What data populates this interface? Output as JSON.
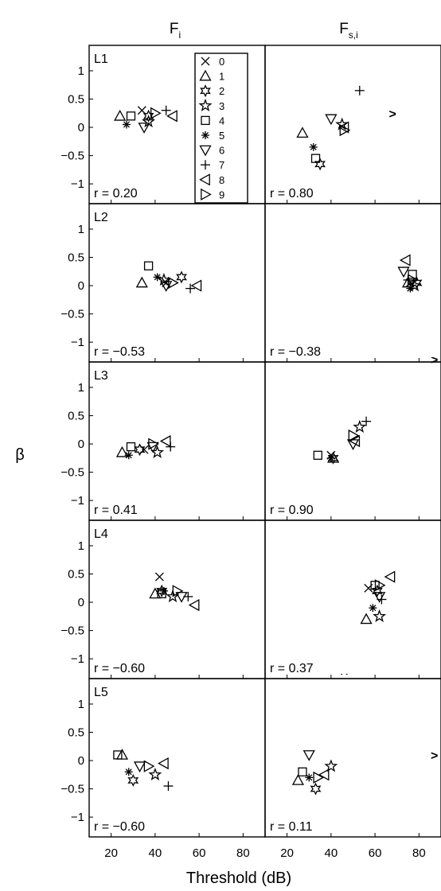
{
  "figure": {
    "column_titles": [
      {
        "main": "F",
        "sub": "i"
      },
      {
        "main": "F",
        "sub": "s,i"
      }
    ],
    "xlabel": "Threshold (dB)",
    "ylabel": "β"
  },
  "legend": {
    "entries": [
      {
        "label": "0",
        "marker": "x-mark"
      },
      {
        "label": "1",
        "marker": "triangle-up"
      },
      {
        "label": "2",
        "marker": "hexagram"
      },
      {
        "label": "3",
        "marker": "pentagram"
      },
      {
        "label": "4",
        "marker": "square"
      },
      {
        "label": "5",
        "marker": "asterisk"
      },
      {
        "label": "6",
        "marker": "triangle-down"
      },
      {
        "label": "7",
        "marker": "plus"
      },
      {
        "label": "8",
        "marker": "triangle-left"
      },
      {
        "label": "9",
        "marker": "triangle-right"
      }
    ]
  },
  "chart_data": [
    {
      "type": "scatter",
      "panel_label": "L1",
      "r_text": "r = 0.20",
      "xlim": [
        10,
        90
      ],
      "ylim": [
        -1.35,
        1.45
      ],
      "xticks": [
        "20",
        "40",
        "60",
        "80"
      ],
      "yticks": [
        "1",
        "0.5",
        "0",
        "−0.5",
        "−1"
      ],
      "ytick_values": [
        1,
        0.5,
        0,
        -0.5,
        -1
      ],
      "points": [
        {
          "label": "0",
          "x": 34,
          "y": 0.3
        },
        {
          "label": "1",
          "x": 24,
          "y": 0.2
        },
        {
          "label": "2",
          "x": 37,
          "y": 0.2
        },
        {
          "label": "3",
          "x": 37,
          "y": 0.1
        },
        {
          "label": "4",
          "x": 29,
          "y": 0.2
        },
        {
          "label": "5",
          "x": 27,
          "y": 0.05
        },
        {
          "label": "6",
          "x": 35,
          "y": 0.0
        },
        {
          "label": "7",
          "x": 45,
          "y": 0.3
        },
        {
          "label": "8",
          "x": 48,
          "y": 0.2
        },
        {
          "label": "9",
          "x": 40,
          "y": 0.25
        }
      ]
    },
    {
      "type": "scatter",
      "panel_label": "",
      "r_text": "r = 0.80",
      "xlim": [
        10,
        90
      ],
      "ylim": [
        -1.35,
        1.45
      ],
      "xticks": [
        "20",
        "40",
        "60",
        "80"
      ],
      "points": [
        {
          "label": "1",
          "x": 27,
          "y": -0.1
        },
        {
          "label": "2",
          "x": 35,
          "y": -0.65
        },
        {
          "label": "3",
          "x": 45,
          "y": 0.05
        },
        {
          "label": "4",
          "x": 33,
          "y": -0.55
        },
        {
          "label": "5",
          "x": 32,
          "y": -0.35
        },
        {
          "label": "6",
          "x": 40,
          "y": 0.15
        },
        {
          "label": "7",
          "x": 53,
          "y": 0.65
        },
        {
          "label": "8",
          "x": 46,
          "y": 0.0
        },
        {
          "label": "9",
          "x": 46,
          "y": -0.05
        }
      ],
      "annotations": [
        {
          "text": ">",
          "x": 68,
          "y": 0.25
        }
      ]
    },
    {
      "type": "scatter",
      "panel_label": "L2",
      "r_text": "r = −0.53",
      "xlim": [
        10,
        90
      ],
      "ylim": [
        -1.35,
        1.45
      ],
      "xticks": [
        "20",
        "40",
        "60",
        "80"
      ],
      "yticks": [
        "1",
        "0.5",
        "0",
        "−0.5",
        "−1"
      ],
      "ytick_values": [
        1,
        0.5,
        0,
        -0.5,
        -1
      ],
      "points": [
        {
          "label": "0",
          "x": 45,
          "y": 0.05
        },
        {
          "label": "1",
          "x": 34,
          "y": 0.05
        },
        {
          "label": "2",
          "x": 52,
          "y": 0.15
        },
        {
          "label": "3",
          "x": 44,
          "y": 0.1
        },
        {
          "label": "4",
          "x": 37,
          "y": 0.35
        },
        {
          "label": "5",
          "x": 41,
          "y": 0.15
        },
        {
          "label": "6",
          "x": 45,
          "y": 0.0
        },
        {
          "label": "7",
          "x": 56,
          "y": -0.05
        },
        {
          "label": "8",
          "x": 59,
          "y": 0.0
        },
        {
          "label": "9",
          "x": 48,
          "y": 0.05
        }
      ]
    },
    {
      "type": "scatter",
      "panel_label": "",
      "r_text": "r = −0.38",
      "xlim": [
        10,
        90
      ],
      "ylim": [
        -1.35,
        1.45
      ],
      "xticks": [
        "20",
        "40",
        "60",
        "80"
      ],
      "points": [
        {
          "label": "0",
          "x": 76,
          "y": 0.05
        },
        {
          "label": "1",
          "x": 75,
          "y": 0.05
        },
        {
          "label": "2",
          "x": 79,
          "y": 0.05
        },
        {
          "label": "3",
          "x": 78,
          "y": 0.0
        },
        {
          "label": "4",
          "x": 77,
          "y": 0.2
        },
        {
          "label": "5",
          "x": 76,
          "y": -0.05
        },
        {
          "label": "6",
          "x": 73,
          "y": 0.25
        },
        {
          "label": "7",
          "x": 75,
          "y": 0.1
        },
        {
          "label": "8",
          "x": 74,
          "y": 0.45
        },
        {
          "label": "9",
          "x": 77,
          "y": 0.1
        }
      ]
    },
    {
      "type": "scatter",
      "panel_label": "L3",
      "r_text": "r = 0.41",
      "xlim": [
        10,
        90
      ],
      "ylim": [
        -1.35,
        1.45
      ],
      "xticks": [
        "20",
        "40",
        "60",
        "80"
      ],
      "yticks": [
        "1",
        "0.5",
        "0",
        "−0.5",
        "−1"
      ],
      "ytick_values": [
        1,
        0.5,
        0,
        -0.5,
        -1
      ],
      "points": [
        {
          "label": "0",
          "x": 35,
          "y": -0.1
        },
        {
          "label": "1",
          "x": 25,
          "y": -0.15
        },
        {
          "label": "2",
          "x": 33,
          "y": -0.1
        },
        {
          "label": "3",
          "x": 41,
          "y": -0.15
        },
        {
          "label": "4",
          "x": 29,
          "y": -0.05
        },
        {
          "label": "5",
          "x": 28,
          "y": -0.2
        },
        {
          "label": "6",
          "x": 39,
          "y": -0.05
        },
        {
          "label": "7",
          "x": 47,
          "y": -0.05
        },
        {
          "label": "8",
          "x": 45,
          "y": 0.05
        },
        {
          "label": "9",
          "x": 39,
          "y": 0.0
        }
      ]
    },
    {
      "type": "scatter",
      "panel_label": "",
      "r_text": "r = 0.90",
      "xlim": [
        10,
        90
      ],
      "ylim": [
        -1.35,
        1.45
      ],
      "xticks": [
        "20",
        "40",
        "60",
        "80"
      ],
      "points": [
        {
          "label": "0",
          "x": 40,
          "y": -0.2
        },
        {
          "label": "1",
          "x": 41,
          "y": -0.25
        },
        {
          "label": "2",
          "x": 41,
          "y": -0.25
        },
        {
          "label": "3",
          "x": 53,
          "y": 0.3
        },
        {
          "label": "4",
          "x": 34,
          "y": -0.2
        },
        {
          "label": "5",
          "x": 40,
          "y": -0.25
        },
        {
          "label": "6",
          "x": 50,
          "y": 0.0
        },
        {
          "label": "7",
          "x": 56,
          "y": 0.4
        },
        {
          "label": "8",
          "x": 51,
          "y": 0.05
        },
        {
          "label": "9",
          "x": 50,
          "y": 0.15
        }
      ],
      "annotations": [
        {
          "text": ">",
          "x": 87,
          "y": 1.5
        }
      ]
    },
    {
      "type": "scatter",
      "panel_label": "L4",
      "r_text": "r = −0.60",
      "xlim": [
        10,
        90
      ],
      "ylim": [
        -1.35,
        1.45
      ],
      "xticks": [
        "20",
        "40",
        "60",
        "80"
      ],
      "yticks": [
        "1",
        "0.5",
        "0",
        "−0.5",
        "−1"
      ],
      "ytick_values": [
        1,
        0.5,
        0,
        -0.5,
        -1
      ],
      "points": [
        {
          "label": "0",
          "x": 42,
          "y": 0.45
        },
        {
          "label": "1",
          "x": 40,
          "y": 0.15
        },
        {
          "label": "2",
          "x": 43,
          "y": 0.2
        },
        {
          "label": "3",
          "x": 48,
          "y": 0.1
        },
        {
          "label": "4",
          "x": 43,
          "y": 0.15
        },
        {
          "label": "5",
          "x": 44,
          "y": 0.2
        },
        {
          "label": "6",
          "x": 52,
          "y": 0.1
        },
        {
          "label": "7",
          "x": 55,
          "y": 0.1
        },
        {
          "label": "8",
          "x": 58,
          "y": -0.05
        },
        {
          "label": "9",
          "x": 50,
          "y": 0.2
        }
      ]
    },
    {
      "type": "scatter",
      "panel_label": "",
      "r_text": "r = 0.37",
      "xlim": [
        10,
        90
      ],
      "ylim": [
        -1.35,
        1.45
      ],
      "xticks": [
        "20",
        "40",
        "60",
        "80"
      ],
      "points": [
        {
          "label": "0",
          "x": 57,
          "y": 0.25
        },
        {
          "label": "1",
          "x": 56,
          "y": -0.3
        },
        {
          "label": "2",
          "x": 61,
          "y": 0.2
        },
        {
          "label": "3",
          "x": 62,
          "y": -0.25
        },
        {
          "label": "4",
          "x": 60,
          "y": 0.3
        },
        {
          "label": "5",
          "x": 59,
          "y": -0.1
        },
        {
          "label": "6",
          "x": 62,
          "y": 0.1
        },
        {
          "label": "7",
          "x": 63,
          "y": 0.05
        },
        {
          "label": "8",
          "x": 67,
          "y": 0.45
        },
        {
          "label": "9",
          "x": 62,
          "y": 0.3
        }
      ]
    },
    {
      "type": "scatter",
      "panel_label": "L5",
      "r_text": "r = −0.60",
      "xlim": [
        10,
        90
      ],
      "ylim": [
        -1.35,
        1.45
      ],
      "xticks": [
        "20",
        "40",
        "60",
        "80"
      ],
      "yticks": [
        "1",
        "0.5",
        "0",
        "−0.5",
        "−1"
      ],
      "ytick_values": [
        1,
        0.5,
        0,
        -0.5,
        -1
      ],
      "points": [
        {
          "label": "1",
          "x": 25,
          "y": 0.1
        },
        {
          "label": "2",
          "x": 30,
          "y": -0.35
        },
        {
          "label": "3",
          "x": 40,
          "y": -0.25
        },
        {
          "label": "4",
          "x": 23,
          "y": 0.1
        },
        {
          "label": "5",
          "x": 28,
          "y": -0.2
        },
        {
          "label": "6",
          "x": 33,
          "y": -0.1
        },
        {
          "label": "7",
          "x": 46,
          "y": -0.45
        },
        {
          "label": "8",
          "x": 44,
          "y": -0.05
        },
        {
          "label": "9",
          "x": 37,
          "y": -0.1
        }
      ]
    },
    {
      "type": "scatter",
      "panel_label": "",
      "r_text": "r = 0.11",
      "xlim": [
        10,
        90
      ],
      "ylim": [
        -1.35,
        1.45
      ],
      "xticks": [
        "20",
        "40",
        "60",
        "80"
      ],
      "points": [
        {
          "label": "1",
          "x": 25,
          "y": -0.35
        },
        {
          "label": "2",
          "x": 33,
          "y": -0.5
        },
        {
          "label": "3",
          "x": 40,
          "y": -0.1
        },
        {
          "label": "4",
          "x": 27,
          "y": -0.2
        },
        {
          "label": "5",
          "x": 30,
          "y": -0.3
        },
        {
          "label": "6",
          "x": 30,
          "y": 0.1
        },
        {
          "label": "8",
          "x": 37,
          "y": -0.25
        },
        {
          "label": "9",
          "x": 34,
          "y": -0.3
        }
      ],
      "annotations": [
        {
          "text": "^",
          "x": 46,
          "y": 1.55
        },
        {
          "text": ">",
          "x": 87,
          "y": 0.1
        }
      ]
    }
  ]
}
